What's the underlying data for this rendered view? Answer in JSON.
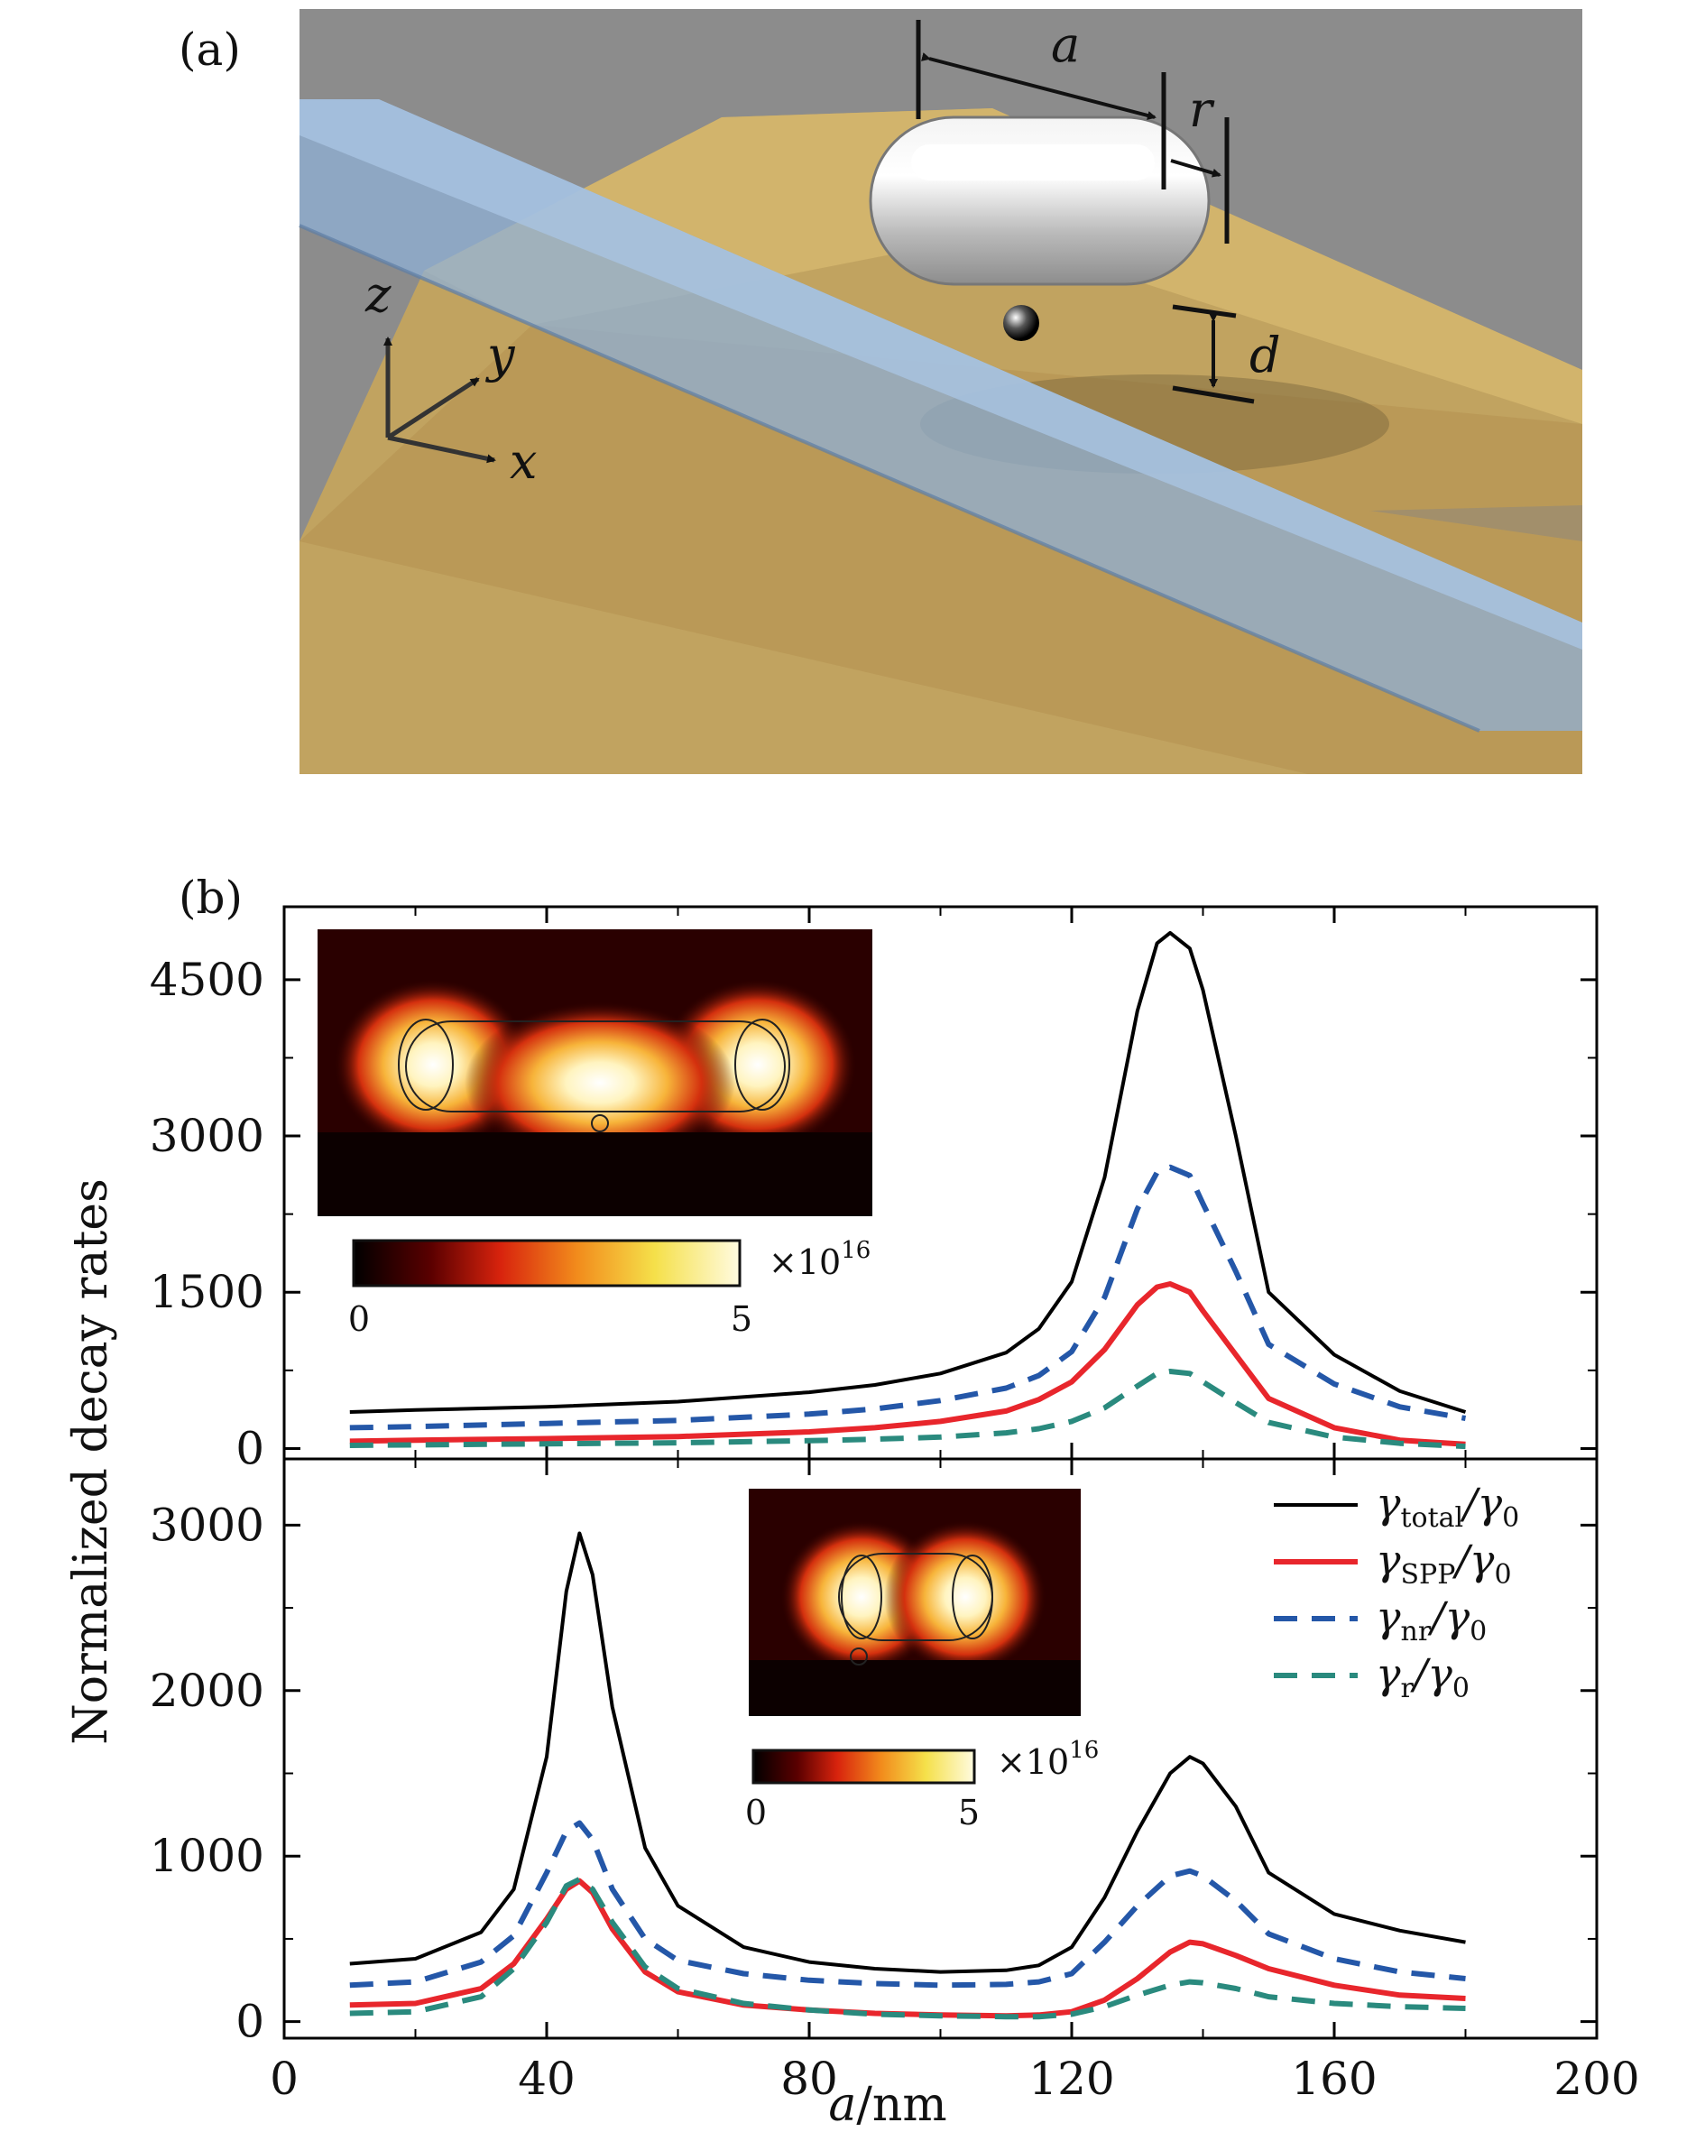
{
  "panel_a": {
    "label": "(a)",
    "dim_a": "a",
    "dim_r": "r",
    "dim_d": "d",
    "axis_z": "z",
    "axis_y": "y",
    "axis_x": "x",
    "colors": {
      "background": "#8c8c8c",
      "substrate": "#c9a660",
      "waveguide": "#8fb0d6",
      "nanorod": "#d8d8d8"
    }
  },
  "panel_b": {
    "label": "(b)",
    "ylabel": "Normalized decay rates",
    "xlabel_var": "a",
    "xlabel_unit": "/nm",
    "inset_top": {
      "colorbar_min": "0",
      "colorbar_max": "5",
      "colorbar_scale": "×10",
      "colorbar_exp": "16"
    },
    "inset_bottom": {
      "colorbar_min": "0",
      "colorbar_max": "5",
      "colorbar_scale": "×10",
      "colorbar_exp": "16"
    },
    "legend": [
      {
        "main": "γ",
        "sub": "total",
        "den": "/γ",
        "den_sub": "0",
        "color": "#000000",
        "dash": "solid"
      },
      {
        "main": "γ",
        "sub": "SPP",
        "den": "/γ",
        "den_sub": "0",
        "color": "#e8262c",
        "dash": "solid"
      },
      {
        "main": "γ",
        "sub": "nr",
        "den": "/γ",
        "den_sub": "0",
        "color": "#2457a8",
        "dash": "dashed"
      },
      {
        "main": "γ",
        "sub": "r",
        "den": "/γ",
        "den_sub": "0",
        "color": "#2a8a7e",
        "dash": "dashed"
      }
    ]
  },
  "chart_data": [
    {
      "type": "line",
      "xlim": [
        0,
        200
      ],
      "ylim": [
        -100,
        5200
      ],
      "yticks": [
        0,
        1500,
        3000,
        4500
      ],
      "x": [
        10,
        20,
        40,
        60,
        80,
        90,
        100,
        110,
        115,
        120,
        125,
        130,
        133,
        135,
        138,
        140,
        145,
        150,
        160,
        170,
        180
      ],
      "series": [
        {
          "name": "γtotal/γ0",
          "color": "#000000",
          "dash": "solid",
          "width": 4,
          "values": [
            350,
            370,
            400,
            450,
            540,
            610,
            720,
            920,
            1150,
            1600,
            2600,
            4200,
            4850,
            4950,
            4800,
            4400,
            3000,
            1500,
            900,
            550,
            350
          ]
        },
        {
          "name": "γSPP/γ0",
          "color": "#e8262c",
          "dash": "solid",
          "width": 6,
          "values": [
            70,
            80,
            95,
            115,
            160,
            200,
            260,
            360,
            470,
            640,
            950,
            1380,
            1550,
            1580,
            1500,
            1320,
            900,
            480,
            200,
            80,
            40
          ]
        },
        {
          "name": "γnr/γ0",
          "color": "#2457a8",
          "dash": "dashed",
          "width": 6,
          "values": [
            200,
            210,
            240,
            270,
            330,
            380,
            460,
            580,
            700,
            930,
            1450,
            2300,
            2650,
            2700,
            2620,
            2350,
            1700,
            1000,
            620,
            400,
            290
          ]
        },
        {
          "name": "γr/γ0",
          "color": "#2a8a7e",
          "dash": "dashed",
          "width": 6,
          "values": [
            30,
            35,
            45,
            55,
            75,
            90,
            110,
            150,
            190,
            260,
            390,
            600,
            720,
            740,
            720,
            640,
            440,
            250,
            110,
            50,
            20
          ]
        }
      ]
    },
    {
      "type": "line",
      "xlim": [
        0,
        200
      ],
      "xticks": [
        0,
        40,
        80,
        120,
        160,
        200
      ],
      "ylim": [
        -100,
        3400
      ],
      "yticks": [
        0,
        1000,
        2000,
        3000
      ],
      "x": [
        10,
        20,
        30,
        35,
        40,
        43,
        45,
        47,
        50,
        55,
        60,
        70,
        80,
        90,
        100,
        110,
        115,
        120,
        125,
        130,
        135,
        138,
        140,
        145,
        150,
        160,
        170,
        180
      ],
      "series": [
        {
          "name": "γtotal/γ0",
          "color": "#000000",
          "dash": "solid",
          "width": 4,
          "values": [
            350,
            380,
            540,
            800,
            1600,
            2600,
            2950,
            2700,
            1900,
            1050,
            700,
            450,
            360,
            320,
            300,
            310,
            340,
            450,
            750,
            1150,
            1500,
            1600,
            1560,
            1300,
            900,
            650,
            550,
            480
          ]
        },
        {
          "name": "γSPP/γ0",
          "color": "#e8262c",
          "dash": "solid",
          "width": 6,
          "values": [
            100,
            110,
            200,
            350,
            620,
            800,
            850,
            780,
            560,
            300,
            180,
            100,
            70,
            50,
            40,
            35,
            40,
            60,
            130,
            260,
            420,
            480,
            470,
            400,
            320,
            220,
            160,
            140
          ]
        },
        {
          "name": "γnr/γ0",
          "color": "#2457a8",
          "dash": "dashed",
          "width": 6,
          "values": [
            220,
            240,
            360,
            520,
            900,
            1150,
            1200,
            1100,
            800,
            500,
            370,
            290,
            250,
            230,
            220,
            225,
            240,
            290,
            480,
            700,
            880,
            910,
            880,
            730,
            530,
            380,
            300,
            260
          ]
        },
        {
          "name": "γr/γ0",
          "color": "#2a8a7e",
          "dash": "dashed",
          "width": 6,
          "values": [
            50,
            60,
            150,
            320,
            600,
            820,
            860,
            800,
            600,
            330,
            200,
            110,
            70,
            45,
            35,
            30,
            30,
            45,
            90,
            160,
            220,
            240,
            235,
            200,
            150,
            110,
            90,
            80
          ]
        }
      ]
    }
  ]
}
